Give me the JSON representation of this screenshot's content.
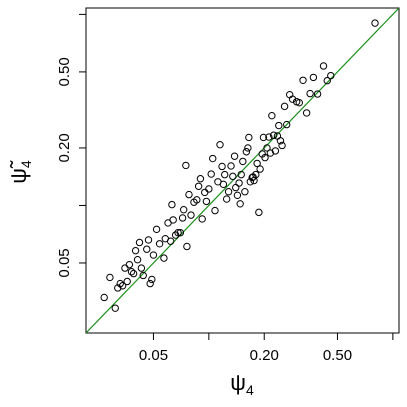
{
  "chart_data": {
    "type": "scatter",
    "title": "",
    "xlabel": "ψ",
    "xlabel_sub": "4",
    "ylabel": "ψ̃",
    "ylabel_sub": "4",
    "xscale": "log",
    "yscale": "log",
    "xlim": [
      0.0215,
      1.08
    ],
    "ylim": [
      0.0215,
      1.08
    ],
    "xticks": [
      0.02,
      0.05,
      0.1,
      0.2,
      0.5,
      1.0
    ],
    "yticks": [
      0.02,
      0.05,
      0.1,
      0.2,
      0.5,
      1.0
    ],
    "xtick_labels": [
      {
        "value": 0.05,
        "label": "0.05"
      },
      {
        "value": 0.2,
        "label": "0.20"
      },
      {
        "value": 0.5,
        "label": "0.50"
      }
    ],
    "ytick_labels": [
      {
        "value": 0.05,
        "label": "0.05"
      },
      {
        "value": 0.2,
        "label": "0.20"
      },
      {
        "value": 0.5,
        "label": "0.50"
      }
    ],
    "reference_line": {
      "slope": 1,
      "intercept": 0,
      "color": "#1a8f1a"
    },
    "point_color": "#000000",
    "points": [
      [
        0.027,
        0.033
      ],
      [
        0.029,
        0.042
      ],
      [
        0.032,
        0.037
      ],
      [
        0.031,
        0.029
      ],
      [
        0.033,
        0.039
      ],
      [
        0.034,
        0.038
      ],
      [
        0.035,
        0.047
      ],
      [
        0.036,
        0.04
      ],
      [
        0.037,
        0.049
      ],
      [
        0.038,
        0.045
      ],
      [
        0.039,
        0.044
      ],
      [
        0.04,
        0.058
      ],
      [
        0.041,
        0.052
      ],
      [
        0.042,
        0.064
      ],
      [
        0.043,
        0.047
      ],
      [
        0.044,
        0.043
      ],
      [
        0.046,
        0.059
      ],
      [
        0.047,
        0.066
      ],
      [
        0.048,
        0.039
      ],
      [
        0.049,
        0.041
      ],
      [
        0.05,
        0.055
      ],
      [
        0.052,
        0.075
      ],
      [
        0.054,
        0.063
      ],
      [
        0.057,
        0.053
      ],
      [
        0.058,
        0.067
      ],
      [
        0.06,
        0.081
      ],
      [
        0.062,
        0.065
      ],
      [
        0.063,
        0.101
      ],
      [
        0.064,
        0.084
      ],
      [
        0.066,
        0.07
      ],
      [
        0.068,
        0.072
      ],
      [
        0.07,
        0.072
      ],
      [
        0.072,
        0.086
      ],
      [
        0.073,
        0.095
      ],
      [
        0.075,
        0.162
      ],
      [
        0.076,
        0.061
      ],
      [
        0.078,
        0.114
      ],
      [
        0.08,
        0.089
      ],
      [
        0.083,
        0.104
      ],
      [
        0.086,
        0.107
      ],
      [
        0.088,
        0.126
      ],
      [
        0.09,
        0.138
      ],
      [
        0.092,
        0.085
      ],
      [
        0.095,
        0.117
      ],
      [
        0.097,
        0.105
      ],
      [
        0.1,
        0.122
      ],
      [
        0.103,
        0.146
      ],
      [
        0.105,
        0.176
      ],
      [
        0.108,
        0.094
      ],
      [
        0.112,
        0.133
      ],
      [
        0.115,
        0.208
      ],
      [
        0.118,
        0.16
      ],
      [
        0.12,
        0.129
      ],
      [
        0.122,
        0.145
      ],
      [
        0.125,
        0.108
      ],
      [
        0.128,
        0.118
      ],
      [
        0.132,
        0.161
      ],
      [
        0.135,
        0.142
      ],
      [
        0.138,
        0.181
      ],
      [
        0.14,
        0.124
      ],
      [
        0.143,
        0.113
      ],
      [
        0.146,
        0.131
      ],
      [
        0.148,
        0.102
      ],
      [
        0.15,
        0.145
      ],
      [
        0.153,
        0.17
      ],
      [
        0.157,
        0.118
      ],
      [
        0.16,
        0.191
      ],
      [
        0.163,
        0.2
      ],
      [
        0.165,
        0.227
      ],
      [
        0.168,
        0.133
      ],
      [
        0.172,
        0.14
      ],
      [
        0.174,
        0.141
      ],
      [
        0.176,
        0.135
      ],
      [
        0.18,
        0.145
      ],
      [
        0.183,
        0.166
      ],
      [
        0.187,
        0.092
      ],
      [
        0.19,
        0.155
      ],
      [
        0.195,
        0.186
      ],
      [
        0.198,
        0.227
      ],
      [
        0.202,
        0.178
      ],
      [
        0.207,
        0.2
      ],
      [
        0.212,
        0.228
      ],
      [
        0.216,
        0.188
      ],
      [
        0.22,
        0.295
      ],
      [
        0.225,
        0.233
      ],
      [
        0.23,
        0.193
      ],
      [
        0.236,
        0.231
      ],
      [
        0.24,
        0.262
      ],
      [
        0.245,
        0.218
      ],
      [
        0.25,
        0.206
      ],
      [
        0.258,
        0.33
      ],
      [
        0.265,
        0.265
      ],
      [
        0.275,
        0.38
      ],
      [
        0.285,
        0.36
      ],
      [
        0.3,
        0.349
      ],
      [
        0.31,
        0.345
      ],
      [
        0.325,
        0.452
      ],
      [
        0.34,
        0.305
      ],
      [
        0.355,
        0.385
      ],
      [
        0.37,
        0.468
      ],
      [
        0.39,
        0.383
      ],
      [
        0.42,
        0.537
      ],
      [
        0.44,
        0.45
      ],
      [
        0.46,
        0.478
      ],
      [
        0.8,
        0.9
      ]
    ]
  }
}
